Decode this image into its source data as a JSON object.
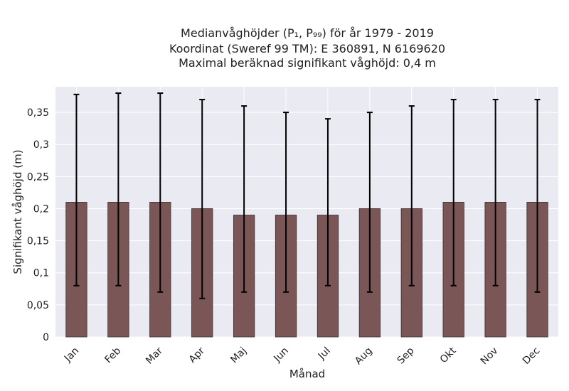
{
  "chart_data": {
    "type": "bar",
    "title_lines": [
      "Medianvåghöjder (P₁, P₉₉) för år 1979 - 2019",
      "Koordinat (Sweref 99 TM): E 360891, N 6169620",
      "Maximal beräknad signifikant våghöjd: 0,4 m"
    ],
    "xlabel": "Månad",
    "ylabel": "Signifikant våghöjd (m)",
    "categories": [
      "Jan",
      "Feb",
      "Mar",
      "Apr",
      "Maj",
      "Jun",
      "Jul",
      "Aug",
      "Sep",
      "Okt",
      "Nov",
      "Dec"
    ],
    "values": [
      0.21,
      0.21,
      0.21,
      0.2,
      0.19,
      0.19,
      0.19,
      0.2,
      0.2,
      0.21,
      0.21,
      0.21
    ],
    "error_low": [
      0.08,
      0.08,
      0.07,
      0.06,
      0.07,
      0.07,
      0.08,
      0.07,
      0.08,
      0.08,
      0.08,
      0.07
    ],
    "error_high": [
      0.378,
      0.38,
      0.38,
      0.37,
      0.36,
      0.35,
      0.34,
      0.35,
      0.36,
      0.37,
      0.37,
      0.37
    ],
    "ylim": [
      0,
      0.39
    ],
    "yticks": [
      0,
      0.05,
      0.1,
      0.15,
      0.2,
      0.25,
      0.3,
      0.35
    ],
    "ytick_labels": [
      "0",
      "0,05",
      "0,1",
      "0,15",
      "0,2",
      "0,25",
      "0,3",
      "0,35"
    ],
    "grid": true,
    "colors": {
      "bar": "#7a5656",
      "bar_edge": "#3d2b2b",
      "plot_background": "#eaeaf2",
      "grid": "#ffffff",
      "error_bar": "#000000"
    }
  }
}
